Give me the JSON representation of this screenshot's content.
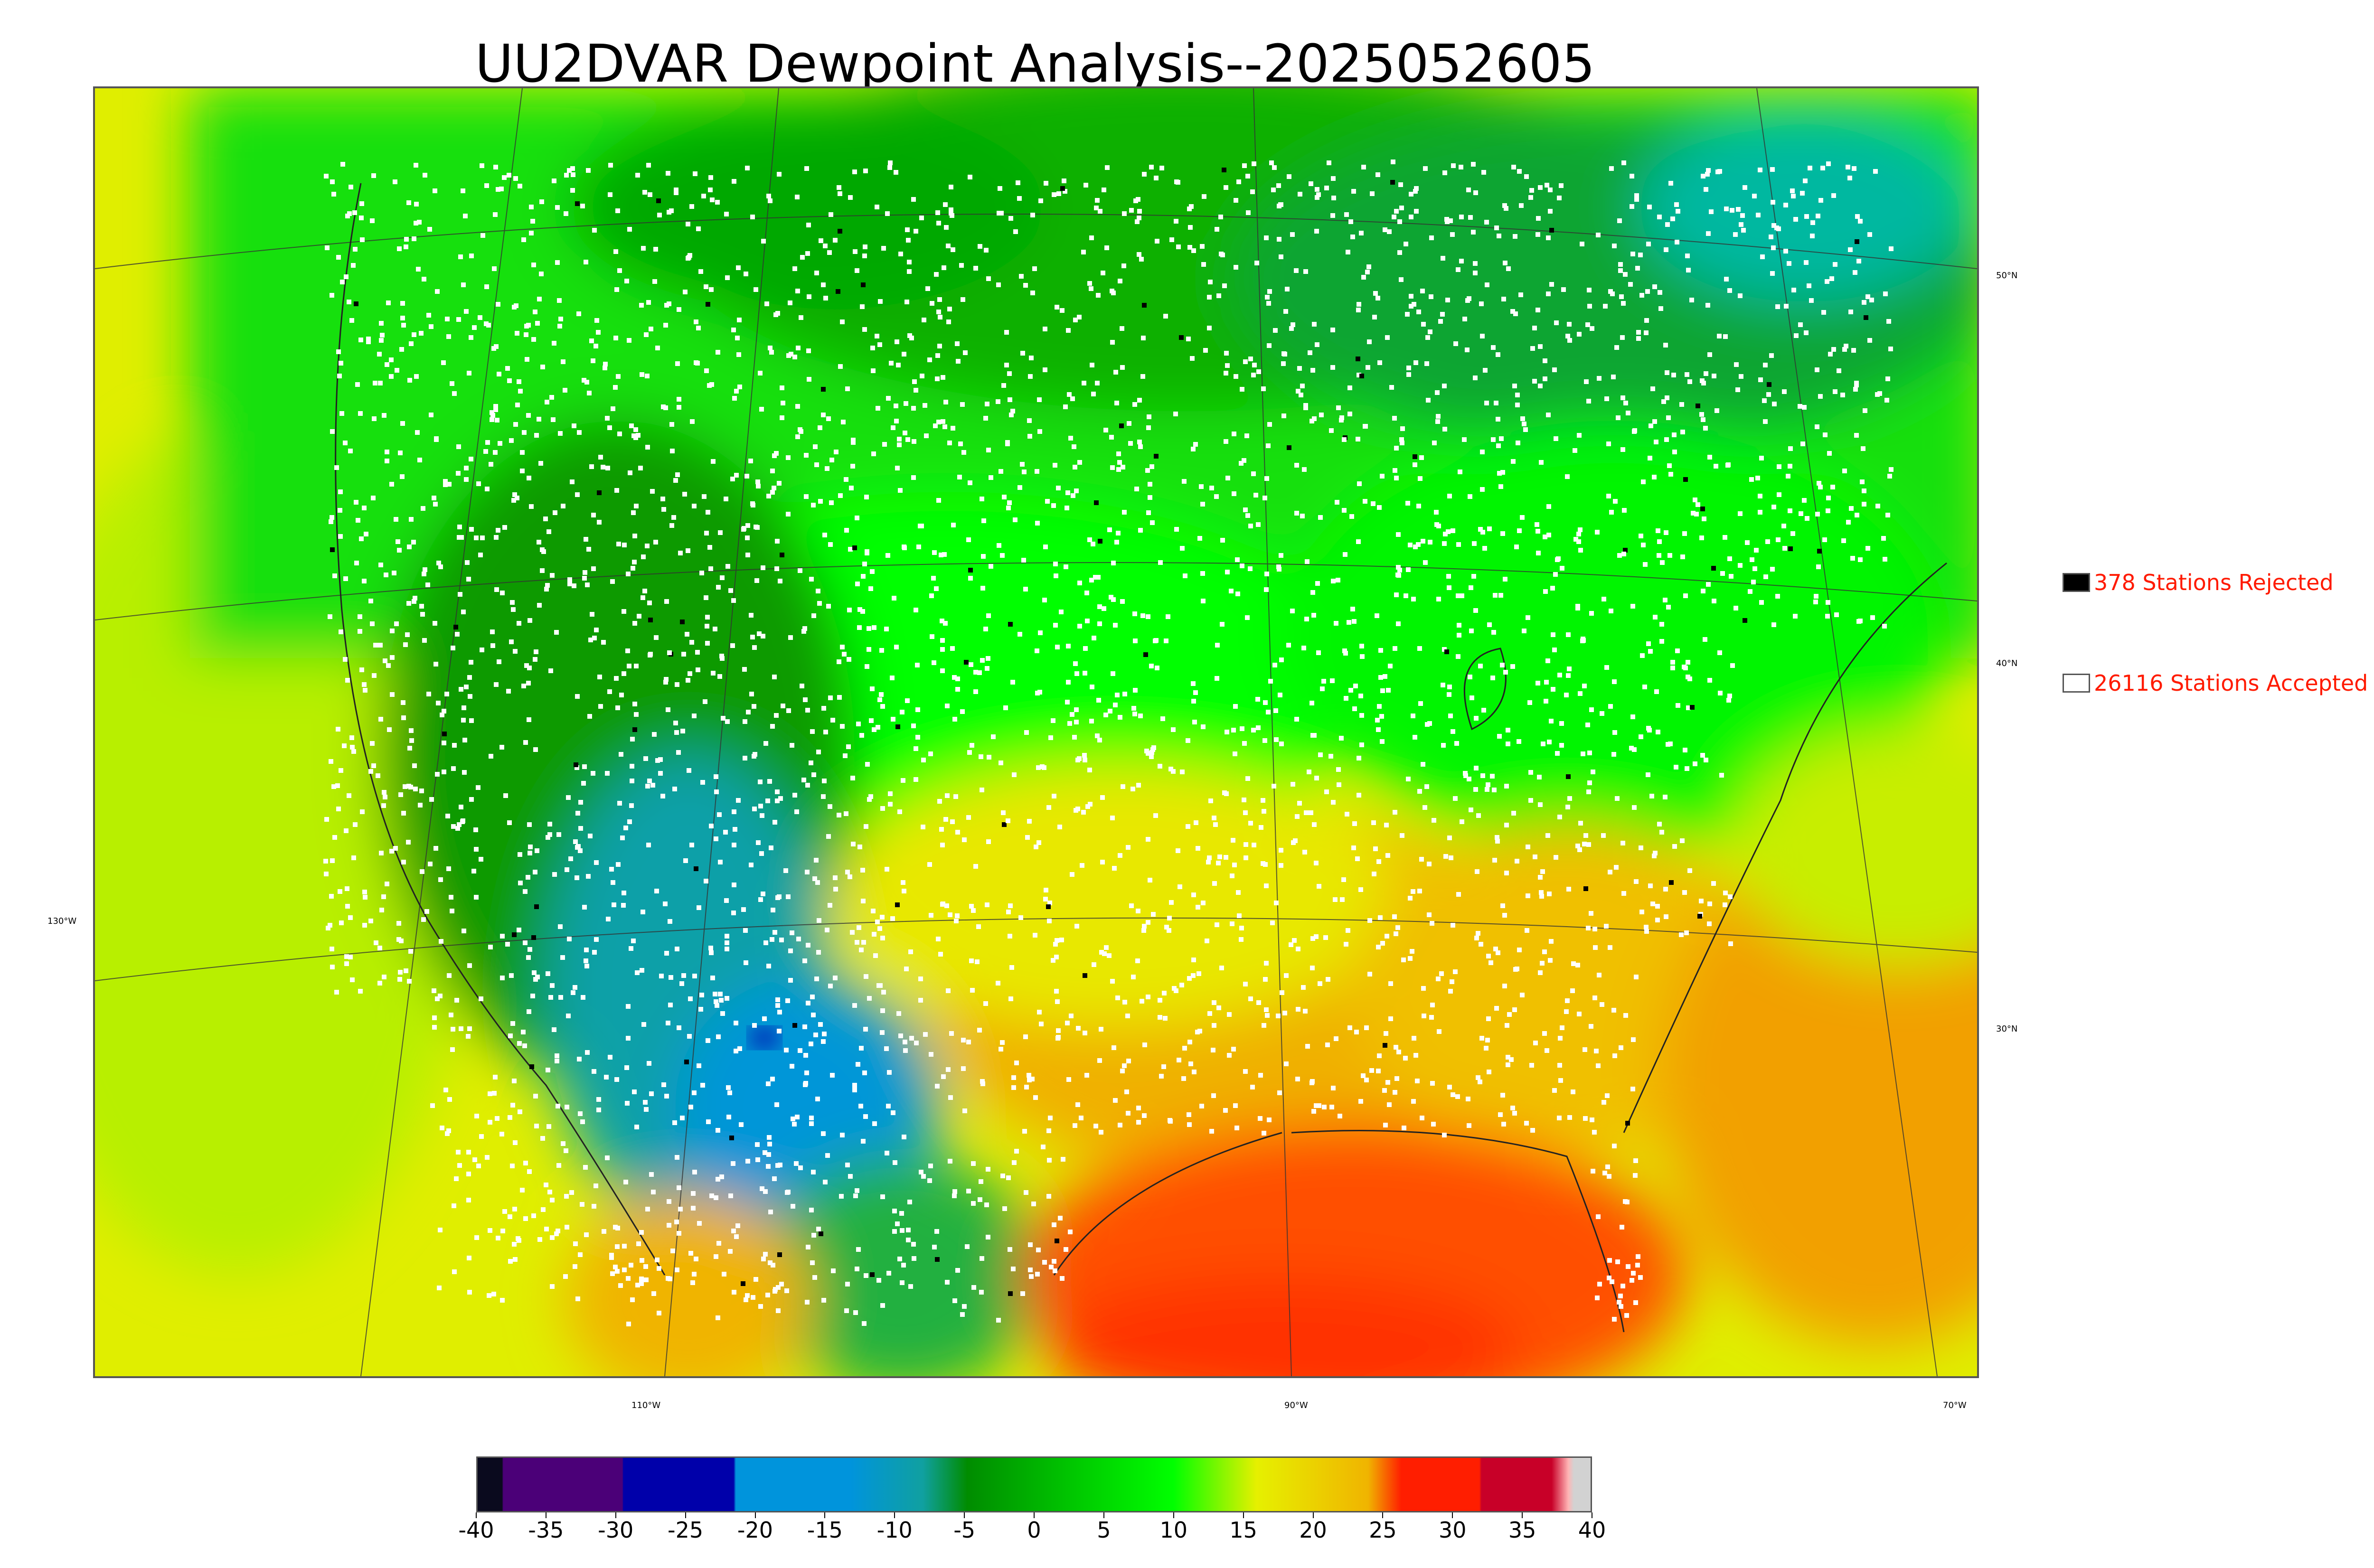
{
  "title": "UU2DVAR Dewpoint Analysis--2025052605",
  "map": {
    "lat_labels": [
      "50°N",
      "40°N",
      "30°N"
    ],
    "lon_labels": [
      "130°W",
      "110°W",
      "90°W",
      "70°W"
    ]
  },
  "legend": {
    "rejected": {
      "label": "378 Stations Rejected",
      "color": "#000000"
    },
    "accepted": {
      "label": "26116 Stations Accepted",
      "color": "#ffffff"
    }
  },
  "colorbar": {
    "tick_labels": [
      "-40",
      "-35",
      "-30",
      "-25",
      "-20",
      "-15",
      "-10",
      "-5",
      "0",
      "5",
      "10",
      "15",
      "20",
      "25",
      "30",
      "35",
      "40"
    ],
    "range": [
      -40,
      40
    ],
    "colors": {
      "c1": "#0a0a1e",
      "c2": "#4b0078",
      "c3": "#0000aa",
      "c4": "#0094dc",
      "c5": "#10a0a0",
      "c6": "#008c00",
      "c7": "#00ff00",
      "c8": "#e6f000",
      "c9": "#f0b400",
      "c10": "#ff1e00",
      "c11": "#c80028",
      "c12": "#ffb4b4",
      "c13": "#d2d2d2"
    }
  }
}
